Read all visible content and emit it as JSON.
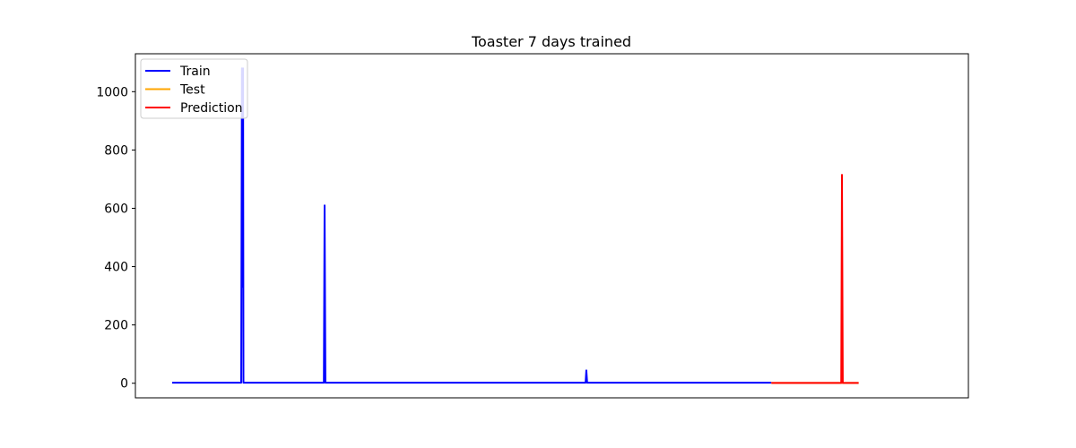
{
  "chart_data": {
    "type": "line",
    "title": "Toaster 7 days trained",
    "xlabel": "",
    "ylabel": "",
    "x_ticks_visible": false,
    "xlim": [
      0,
      1000
    ],
    "ylim": [
      -50,
      1130
    ],
    "y_ticks": [
      0,
      200,
      400,
      600,
      800,
      1000
    ],
    "legend": {
      "placement": "upper-left"
    },
    "series": [
      {
        "name": "Train",
        "color": "#0000ff",
        "points": [
          [
            0,
            2
          ],
          [
            91,
            2
          ],
          [
            92,
            1080
          ],
          [
            93,
            330
          ],
          [
            93.5,
            1080
          ],
          [
            94,
            2
          ],
          [
            200,
            2
          ],
          [
            201,
            610
          ],
          [
            202,
            2
          ],
          [
            545,
            2
          ],
          [
            546,
            44
          ],
          [
            547,
            2
          ],
          [
            790,
            2
          ]
        ]
      },
      {
        "name": "Test",
        "color": "#ffa500",
        "points": [
          [
            790,
            1
          ],
          [
            905,
            1
          ]
        ]
      },
      {
        "name": "Prediction",
        "color": "#ff0000",
        "points": [
          [
            790,
            1
          ],
          [
            882,
            1
          ],
          [
            883,
            715
          ],
          [
            884,
            1
          ],
          [
            905,
            1
          ]
        ]
      }
    ]
  }
}
